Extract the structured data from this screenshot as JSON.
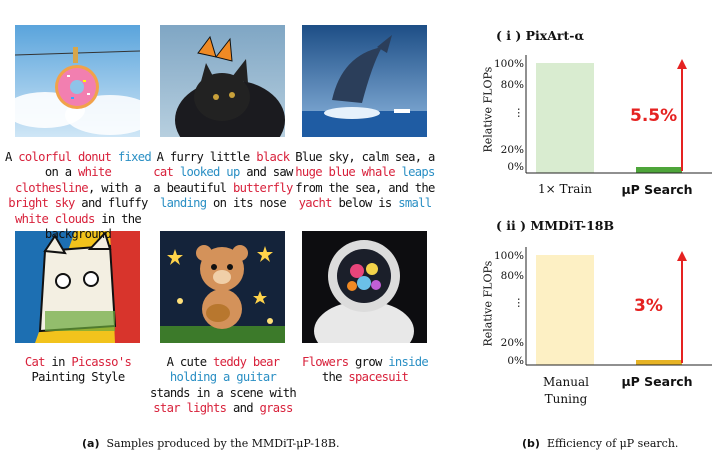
{
  "samples": [
    {
      "segments": [
        [
          "A ",
          ""
        ],
        [
          "colorful donut",
          "red"
        ],
        [
          " fixed",
          "blue"
        ],
        [
          " on a ",
          ""
        ],
        [
          "white clothesline",
          "red"
        ],
        [
          ", with a ",
          ""
        ],
        [
          "bright sky",
          "red"
        ],
        [
          " and fluffy ",
          ""
        ],
        [
          "white clouds",
          "red"
        ],
        [
          " in the background",
          ""
        ]
      ]
    },
    {
      "segments": [
        [
          "A furry little ",
          ""
        ],
        [
          "black cat",
          "red"
        ],
        [
          " ",
          ""
        ],
        [
          "looked up",
          "blue"
        ],
        [
          " and saw a beautiful ",
          ""
        ],
        [
          "butterfly",
          "red"
        ],
        [
          " ",
          ""
        ],
        [
          "landing",
          "blue"
        ],
        [
          " on its nose",
          ""
        ]
      ]
    },
    {
      "segments": [
        [
          "Blue sky, calm sea, a ",
          ""
        ],
        [
          "huge blue whale",
          "red"
        ],
        [
          " ",
          ""
        ],
        [
          "leaps",
          "blue"
        ],
        [
          " from the sea, and the ",
          ""
        ],
        [
          "yacht",
          "red"
        ],
        [
          " below is ",
          ""
        ],
        [
          "small",
          "blue"
        ]
      ]
    },
    {
      "segments": [
        [
          "Cat",
          "red"
        ],
        [
          " in ",
          ""
        ],
        [
          "Picasso's",
          "red"
        ],
        [
          " Painting Style",
          ""
        ]
      ]
    },
    {
      "segments": [
        [
          "A cute ",
          ""
        ],
        [
          "teddy bear",
          "red"
        ],
        [
          " ",
          ""
        ],
        [
          "holding a guitar",
          "blue"
        ],
        [
          " stands in a scene with ",
          ""
        ],
        [
          "star lights",
          "red"
        ],
        [
          " and ",
          ""
        ],
        [
          "grass",
          "red"
        ]
      ]
    },
    {
      "segments": [
        [
          "Flowers",
          "red"
        ],
        [
          " grow ",
          ""
        ],
        [
          "inside",
          "blue"
        ],
        [
          " the ",
          ""
        ],
        [
          "spacesuit",
          "red"
        ]
      ]
    }
  ],
  "captions": {
    "a_tag": "(a)",
    "a_text": "Samples produced by the MMDiT-μP-18B.",
    "b_tag": "(b)",
    "b_text": "Efficiency of μP search."
  },
  "chart_data": [
    {
      "type": "bar",
      "title": "( i ) PixArt-α",
      "ylabel": "Relative FLOPs",
      "yticks": [
        "100%",
        "80%",
        "⋮",
        "20%",
        "0%"
      ],
      "categories": [
        "1× Train",
        "μP Search"
      ],
      "values": [
        100,
        5.5
      ],
      "colors": [
        "#d9ecd0",
        "#4ea53a"
      ],
      "annotation": "5.5%"
    },
    {
      "type": "bar",
      "title": "( ii ) MMDiT-18B",
      "ylabel": "Relative FLOPs",
      "yticks": [
        "100%",
        "80%",
        "⋮",
        "20%",
        "0%"
      ],
      "categories": [
        "Manual Tuning",
        "μP Search"
      ],
      "values": [
        100,
        3
      ],
      "colors": [
        "#fdf0c4",
        "#e6b324"
      ],
      "annotation": "3%"
    }
  ]
}
